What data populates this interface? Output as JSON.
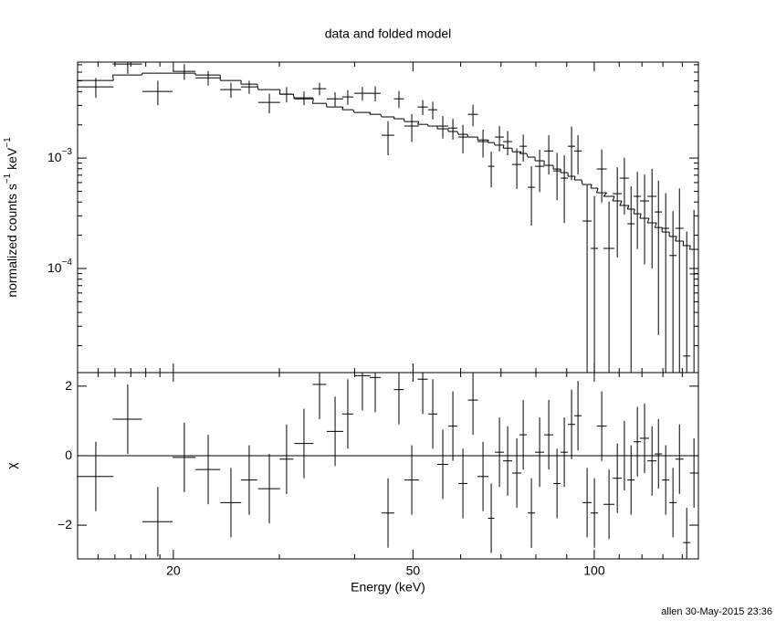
{
  "chart_data": {
    "type": "spectrum",
    "title": "data and folded model",
    "xlabel": "Energy (keV)",
    "footer": "allen 30-May-2015 23:36",
    "log_x": true,
    "xlim": [
      13.87,
      148.9
    ],
    "xticks": [
      20,
      50,
      100
    ],
    "xminor": [
      15,
      16,
      17,
      18,
      19,
      30,
      40,
      60,
      70,
      80,
      90,
      110,
      120,
      130,
      140
    ],
    "x": [
      14.87,
      16.8,
      18.85,
      20.86,
      22.85,
      24.93,
      26.73,
      28.87,
      30.84,
      32.96,
      34.98,
      37.12,
      38.97,
      41.21,
      43.28,
      45.45,
      47.39,
      49.77,
      51.9,
      53.93,
      56.04,
      58.24,
      60.52,
      62.89,
      65.35,
      67.44,
      69.59,
      71.81,
      74.37,
      76.21,
      78.63,
      81.15,
      84.03,
      86.72,
      89.17,
      91.69,
      93.96,
      97.3,
      100.05,
      102.9,
      105.8,
      109.2,
      112.2,
      115.1,
      117.9,
      121.2,
      124.7,
      127.8,
      131.4,
      135.1,
      138.5,
      142.4,
      146.4
    ],
    "xerr": [
      1.04,
      0.94,
      1.09,
      0.91,
      1.08,
      1.0,
      0.84,
      1.21,
      0.81,
      1.21,
      0.92,
      1.17,
      0.82,
      1.29,
      0.91,
      1.11,
      0.91,
      1.39,
      1.0,
      0.94,
      1.17,
      1.02,
      1.06,
      1.21,
      1.37,
      0.82,
      1.21,
      1.25,
      1.3,
      1.06,
      1.1,
      1.42,
      1.47,
      1.21,
      1.25,
      1.28,
      1.31,
      1.7,
      1.4,
      1.98,
      2.22,
      1.91,
      1.96,
      1.61,
      1.65,
      2.12,
      2.18,
      1.78,
      1.83,
      1.89,
      2.18,
      1.99,
      2.3
    ],
    "panels": [
      {
        "type": "step",
        "ylabel": [
          "normalized counts s",
          "−1",
          " keV",
          "−1"
        ],
        "log_y": true,
        "ylim": [
          1.14e-05,
          0.0074
        ],
        "yticks": [
          {
            "value": 0.001,
            "label": "10",
            "exponent": "−3"
          },
          {
            "value": 0.0001,
            "label": "10",
            "exponent": "−4"
          }
        ],
        "yminor": [
          2e-05,
          3e-05,
          4e-05,
          5e-05,
          6e-05,
          7e-05,
          8e-05,
          9e-05,
          0.0002,
          0.0003,
          0.0004,
          0.0005,
          0.0006,
          0.0007,
          0.0008,
          0.0009,
          0.002,
          0.003,
          0.004,
          0.005,
          0.006,
          0.007
        ],
        "color": "#000000",
        "values": [
          0.00441,
          0.0071,
          0.00401,
          0.0061,
          0.00533,
          0.00417,
          0.00441,
          0.00319,
          0.00379,
          0.00351,
          0.00425,
          0.00344,
          0.00358,
          0.00386,
          0.00386,
          0.00161,
          0.00344,
          0.00195,
          0.0029,
          0.00274,
          0.00195,
          0.00187,
          0.00155,
          0.00249,
          0.00141,
          0.000842,
          0.00155,
          0.00141,
          0.000875,
          0.00128,
          0.000544,
          0.000842,
          0.00116,
          0.000766,
          0.000658,
          0.00128,
          0.00116,
          0.000269,
          0.000152,
          0.000796,
          0.000152,
          0.000476,
          0.000658,
          0.000254,
          0.00045,
          0.000409,
          0.00045,
          0.000325,
          0.000231,
          0.000131,
          0.000231,
          1.61e-05,
          8.92e-05
        ],
        "errors": [
          0.0009,
          0.0013,
          0.001,
          0.001,
          0.0008,
          0.00065,
          0.0006,
          0.00065,
          0.0006,
          0.0005,
          0.00055,
          0.0005,
          0.00055,
          0.00055,
          0.0006,
          0.00055,
          0.0006,
          0.00055,
          0.00045,
          0.0005,
          0.00045,
          0.0004,
          0.00045,
          0.00055,
          0.0004,
          0.0003,
          0.0004,
          0.00035,
          0.00035,
          0.00035,
          0.0003,
          0.00035,
          0.00045,
          0.00035,
          0.0004,
          0.00065,
          0.00045,
          0.0003,
          0.0003,
          0.0004,
          0.00025,
          0.00035,
          0.00035,
          0.0003,
          0.0003,
          0.0003,
          0.00035,
          0.0003,
          0.00025,
          0.0002,
          0.0003,
          0.0002,
          0.00025
        ],
        "model": [
          0.00504,
          0.00565,
          0.00587,
          0.00587,
          0.00565,
          0.00504,
          0.00467,
          0.00417,
          0.00379,
          0.00344,
          0.00313,
          0.0029,
          0.00274,
          0.00259,
          0.00249,
          0.00236,
          0.00227,
          0.00214,
          0.00202,
          0.00195,
          0.00184,
          0.00174,
          0.00164,
          0.00155,
          0.00146,
          0.00138,
          0.00131,
          0.00123,
          0.00114,
          0.0011,
          0.00102,
          0.000945,
          0.000859,
          0.000796,
          0.000738,
          0.000684,
          0.000634,
          0.000576,
          0.000534,
          0.000485,
          0.00045,
          0.000409,
          0.000372,
          0.000345,
          0.000313,
          0.000285,
          0.000259,
          0.000235,
          0.000214,
          0.000195,
          0.000177,
          0.000161,
          0.000149
        ]
      },
      {
        "type": "residual",
        "ylabel": "χ",
        "ylim": [
          -2.97,
          2.39
        ],
        "yticks": [
          {
            "value": -2,
            "label": "−2"
          },
          0,
          2
        ],
        "color": "#000000",
        "reference_line": {
          "value": 0,
          "color": "#00cc00"
        },
        "error": 1,
        "values": [
          -0.6,
          1.05,
          -1.9,
          -0.05,
          -0.4,
          -1.35,
          -0.7,
          -0.95,
          -0.1,
          0.35,
          2.05,
          0.7,
          1.2,
          2.3,
          2.25,
          -1.65,
          1.9,
          -0.7,
          2.2,
          1.2,
          -0.25,
          0.85,
          -0.8,
          1.6,
          -0.6,
          -1.8,
          0.1,
          -0.15,
          -0.5,
          0.6,
          -1.65,
          0.1,
          0.6,
          -0.8,
          0.1,
          0.9,
          1.15,
          -1.35,
          -1.65,
          0.85,
          -1.4,
          -0.65,
          0,
          -0.7,
          0.4,
          0.5,
          -0.15,
          0.05,
          -0.7,
          -1.35,
          -0.1,
          -2.5,
          -0.5
        ]
      }
    ]
  }
}
